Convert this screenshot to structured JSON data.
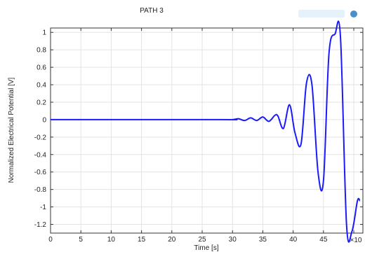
{
  "chart_data": {
    "type": "line",
    "title": "PATH 3",
    "xlabel": "Time [s]",
    "ylabel": "Normalized Electrical Potential [V]",
    "x_multiplier_label": "×10",
    "xlim": [
      0,
      51.5
    ],
    "ylim": [
      -1.3,
      1.05
    ],
    "x_ticks": [
      0,
      5,
      10,
      15,
      20,
      25,
      30,
      35,
      40,
      45,
      50
    ],
    "x_tick_labels": [
      "0",
      "5",
      "10",
      "15",
      "20",
      "25",
      "30",
      "35",
      "40",
      "45"
    ],
    "y_ticks": [
      1,
      0.8,
      0.6,
      0.4,
      0.2,
      0,
      -0.2,
      -0.4,
      -0.6,
      -0.8,
      -1,
      -1.2
    ],
    "y_tick_labels": [
      "1",
      "0.8",
      "0.6",
      "0.4",
      "0.2",
      "0",
      "-0.2",
      "-0.4",
      "-0.6",
      "-0.8",
      "-1",
      "-1.2"
    ],
    "grid": true,
    "series_color": "#1a1aff",
    "series": [
      {
        "x": [
          0,
          28,
          30,
          31,
          32,
          33,
          34,
          35,
          36,
          37,
          37.5,
          38.4,
          39.4,
          40.3,
          41.3,
          42.2,
          43.1,
          44.1,
          45,
          45.9,
          46.9,
          47.8,
          48.8,
          49.7,
          50.6,
          51.0
        ],
        "y": [
          0,
          0,
          0,
          0.01,
          -0.01,
          0.02,
          -0.01,
          0.03,
          -0.02,
          0.05,
          0.04,
          -0.1,
          0.17,
          -0.15,
          -0.28,
          0.42,
          0.4,
          -0.6,
          -0.7,
          0.75,
          0.98,
          0.95,
          -1.2,
          -1.28,
          -0.93,
          -0.93
        ]
      }
    ]
  }
}
